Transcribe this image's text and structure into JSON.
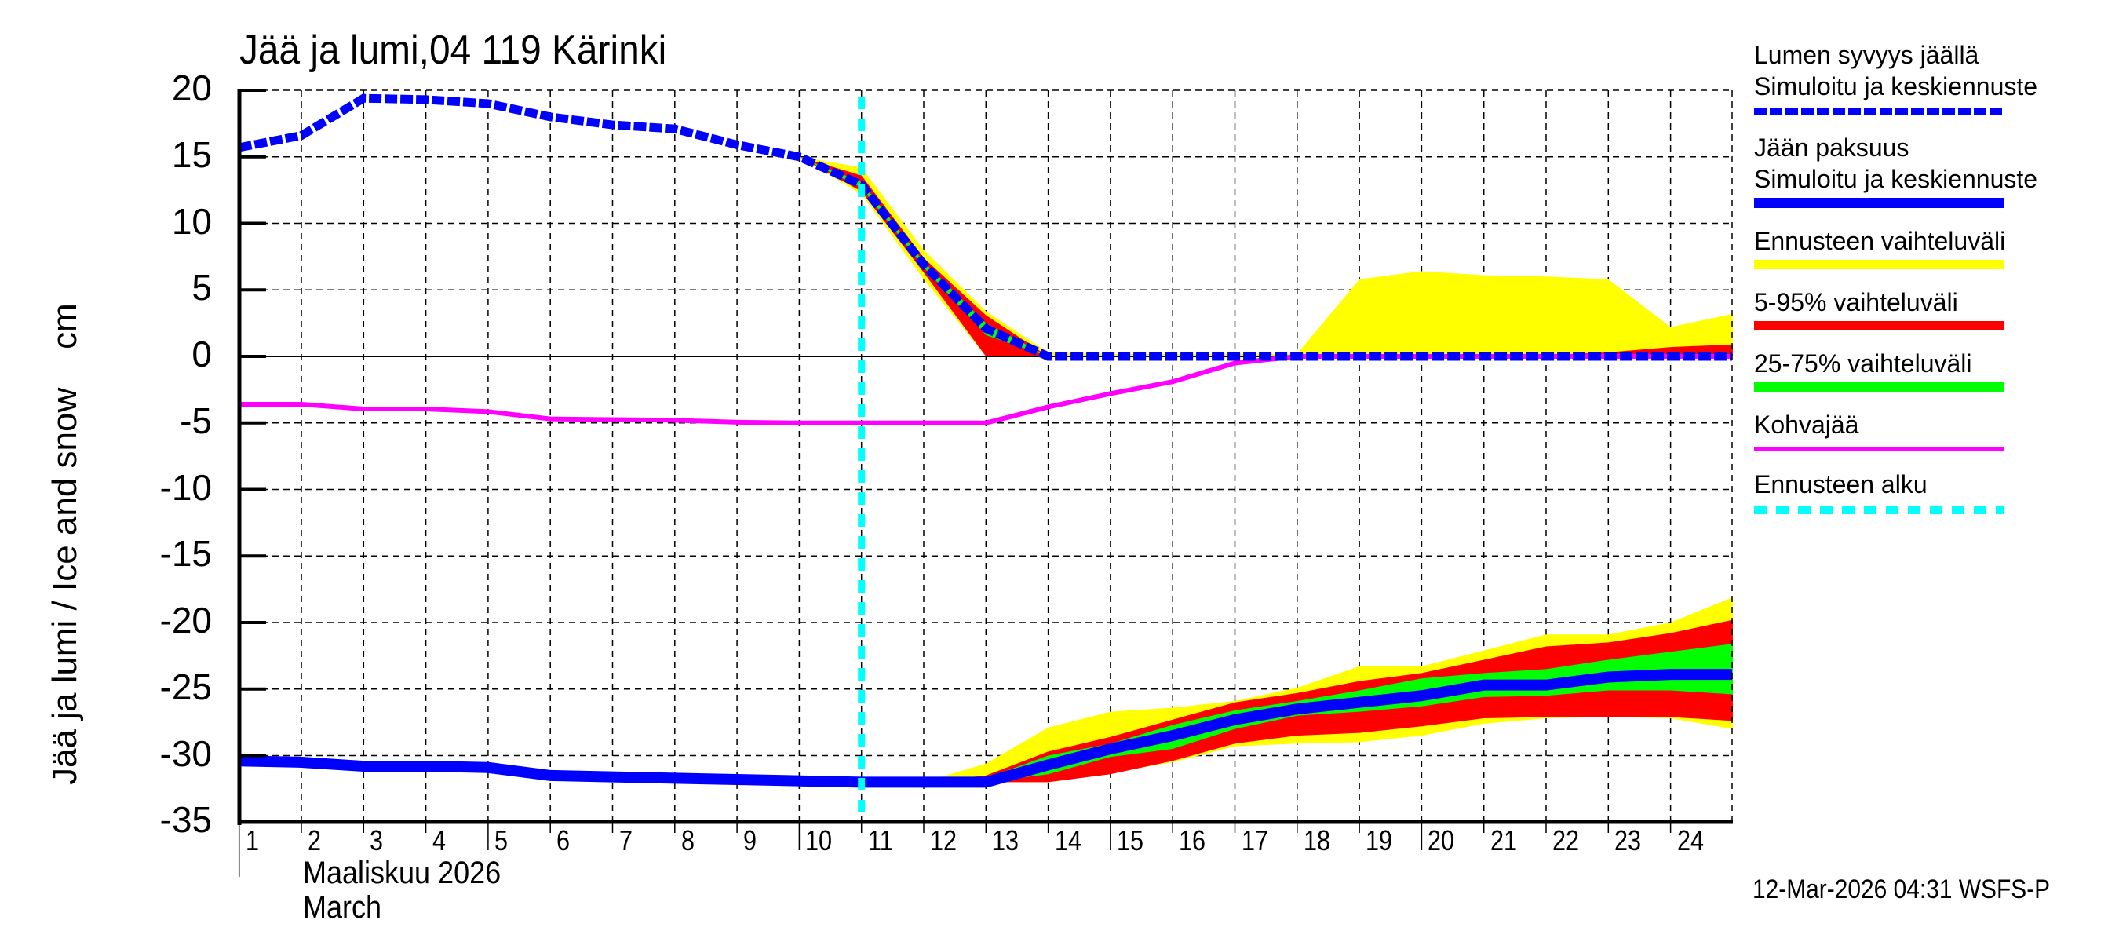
{
  "title": "Jää ja lumi,04 119 Kärinki",
  "y_axis_label": "Jää ja lumi / Ice and snow    cm",
  "x_axis": {
    "month_fi": "Maaliskuu 2026",
    "month_en": "March",
    "tick_labels": [
      "1",
      "2",
      "3",
      "4",
      "5",
      "6",
      "7",
      "8",
      "9",
      "10",
      "11",
      "12",
      "13",
      "14",
      "15",
      "16",
      "17",
      "18",
      "19",
      "20",
      "21",
      "22",
      "23",
      "24"
    ]
  },
  "y_axis": {
    "tick_labels": [
      "20",
      "15",
      "10",
      "5",
      "0",
      "-5",
      "-10",
      "-15",
      "-20",
      "-25",
      "-30",
      "-35"
    ]
  },
  "legend": {
    "items": [
      {
        "label": "Lumen syvyys jäällä\nSimuloitu ja keskiennuste",
        "line1": "Lumen syvyys jäällä",
        "line2": "Simuloitu ja keskiennuste",
        "color": "#0000ff",
        "style": "dashed"
      },
      {
        "label": "Jään paksuus\nSimuloitu ja keskiennuste",
        "line1": "Jään paksuus",
        "line2": "Simuloitu ja keskiennuste",
        "color": "#0000ff",
        "style": "solid"
      },
      {
        "label": "Ennusteen vaihteluväli",
        "line1": "Ennusteen vaihteluväli",
        "color": "#ffff00",
        "style": "solid"
      },
      {
        "label": "5-95% vaihteluväli",
        "line1": "5-95% vaihteluväli",
        "color": "#ff0000",
        "style": "solid"
      },
      {
        "label": "25-75% vaihteluväli",
        "line1": "25-75% vaihteluväli",
        "color": "#00ff00",
        "style": "solid"
      },
      {
        "label": "Kohvajää",
        "line1": "Kohvajää",
        "color": "#ff00ff",
        "style": "thin"
      },
      {
        "label": "Ennusteen alku",
        "line1": "Ennusteen alku",
        "color": "#00ffff",
        "style": "dashed"
      }
    ]
  },
  "timestamp": "12-Mar-2026 04:31 WSFS-P",
  "colors": {
    "snow": "#0000ff",
    "ice": "#0000ff",
    "range_full": "#ffff00",
    "range_5_95": "#ff0000",
    "range_25_75": "#00ff00",
    "slush": "#ff00ff",
    "forecast_start": "#00ffff",
    "grid": "#000000"
  },
  "chart_data": {
    "type": "line",
    "title": "Jää ja lumi,04 119 Kärinki",
    "xlabel": "Maaliskuu 2026 / March",
    "ylabel": "Jää ja lumi / Ice and snow    cm",
    "xlim": [
      1,
      25
    ],
    "ylim": [
      -35,
      20
    ],
    "grid": true,
    "legend_position": "right",
    "forecast_start_day": 11,
    "series": [
      {
        "name": "Lumen syvyys jäällä – Simuloitu ja keskiennuste",
        "style": "dashed",
        "color": "#0000ff",
        "x": [
          1,
          2,
          3,
          4,
          5,
          6,
          7,
          8,
          9,
          10,
          11,
          12,
          13,
          14,
          15,
          16,
          17,
          18,
          19,
          20,
          21,
          22,
          23,
          24,
          25
        ],
        "values": [
          15.7,
          16.6,
          19.4,
          19.3,
          19.0,
          18.0,
          17.4,
          17.1,
          15.9,
          15.0,
          12.9,
          6.9,
          2.1,
          0,
          0,
          0,
          0,
          0,
          0,
          0,
          0,
          0,
          0,
          0,
          0
        ]
      },
      {
        "name": "Jään paksuus – Simuloitu ja keskiennuste",
        "style": "solid-thick",
        "color": "#0000ff",
        "x": [
          1,
          2,
          3,
          4,
          5,
          6,
          7,
          8,
          9,
          10,
          11,
          12,
          13,
          14,
          15,
          16,
          17,
          18,
          19,
          20,
          21,
          22,
          23,
          24,
          25
        ],
        "values": [
          -30.4,
          -30.5,
          -30.8,
          -30.8,
          -30.9,
          -31.5,
          -31.6,
          -31.7,
          -31.8,
          -31.9,
          -32.0,
          -32.0,
          -32.0,
          -30.7,
          -29.5,
          -28.5,
          -27.3,
          -26.5,
          -26.0,
          -25.5,
          -24.7,
          -24.7,
          -24.1,
          -23.9,
          -23.9
        ]
      },
      {
        "name": "Kohvajää",
        "style": "thin",
        "color": "#ff00ff",
        "x": [
          1,
          2,
          3,
          4,
          5,
          6,
          7,
          8,
          9,
          10,
          11,
          12,
          13,
          14,
          15,
          16,
          17,
          18,
          19,
          20,
          21,
          22,
          23,
          24,
          25
        ],
        "values": [
          -3.6,
          -3.6,
          -3.95,
          -3.95,
          -4.15,
          -4.7,
          -4.75,
          -4.8,
          -4.95,
          -5,
          -5,
          -5,
          -5,
          -3.8,
          -2.8,
          -1.9,
          -0.5,
          0,
          0,
          0,
          0,
          0,
          0,
          0,
          0
        ]
      }
    ],
    "bands": [
      {
        "name": "Ennusteen vaihteluväli (snow)",
        "color": "#ffff00",
        "x": [
          10,
          11,
          12,
          13,
          14,
          15,
          16,
          17,
          18,
          19,
          20,
          21,
          22,
          23,
          24,
          25
        ],
        "upper": [
          15.0,
          14.2,
          8.0,
          3.4,
          0.3,
          0.2,
          0.2,
          0.2,
          0.2,
          5.8,
          6.4,
          6.1,
          6.0,
          5.8,
          2.2,
          3.2
        ],
        "lower": [
          15.0,
          12.2,
          5.8,
          0,
          0,
          0,
          0,
          0,
          0,
          0,
          0,
          0,
          0,
          0,
          0,
          0
        ]
      },
      {
        "name": "5-95% vaihteluväli (snow)",
        "color": "#ff0000",
        "x": [
          10,
          11,
          12,
          13,
          14,
          15,
          16,
          17,
          18,
          19,
          20,
          21,
          22,
          23,
          24,
          25
        ],
        "upper": [
          15.0,
          13.6,
          7.4,
          3.1,
          0,
          0,
          0,
          0,
          0,
          0,
          0,
          0,
          0.1,
          0.3,
          0.7,
          0.9
        ],
        "lower": [
          15.0,
          12.4,
          6.3,
          0,
          0,
          0,
          0,
          0,
          0,
          0,
          0,
          0,
          0,
          0,
          0,
          0
        ]
      },
      {
        "name": "25-75% vaihteluväli (snow)",
        "color": "#00ff00",
        "x": [
          10,
          11,
          12,
          13,
          14
        ],
        "upper": [
          15.0,
          13.1,
          7.1,
          2.5,
          0
        ],
        "lower": [
          15.0,
          12.7,
          6.7,
          1.6,
          0
        ]
      },
      {
        "name": "Ennusteen vaihteluväli (ice)",
        "color": "#ffff00",
        "x": [
          11,
          12,
          13,
          14,
          15,
          16,
          17,
          18,
          19,
          20,
          21,
          22,
          23,
          24,
          25
        ],
        "upper": [
          -32.0,
          -32.0,
          -30.6,
          -27.9,
          -26.7,
          -26.4,
          -25.9,
          -24.9,
          -23.3,
          -23.3,
          -22.1,
          -20.9,
          -20.9,
          -20.0,
          -18.1
        ],
        "lower": [
          -32.0,
          -32.0,
          -32.0,
          -32.0,
          -31.3,
          -30.5,
          -29.3,
          -29.1,
          -29.0,
          -28.5,
          -27.6,
          -27.2,
          -27.1,
          -27.2,
          -28.0
        ]
      },
      {
        "name": "5-95% vaihteluväli (ice)",
        "color": "#ff0000",
        "x": [
          12,
          13,
          14,
          15,
          16,
          17,
          18,
          19,
          20,
          21,
          22,
          23,
          24,
          25
        ],
        "upper": [
          -32.0,
          -31.5,
          -29.7,
          -28.6,
          -27.3,
          -26.0,
          -25.3,
          -24.4,
          -23.8,
          -22.8,
          -21.8,
          -21.5,
          -20.8,
          -19.8
        ],
        "lower": [
          -32.0,
          -32.0,
          -32.0,
          -31.4,
          -30.4,
          -29.1,
          -28.5,
          -28.3,
          -27.8,
          -27.2,
          -27.1,
          -27.1,
          -27.1,
          -27.4
        ]
      },
      {
        "name": "25-75% vaihteluväli (ice)",
        "color": "#00ff00",
        "x": [
          12,
          13,
          14,
          15,
          16,
          17,
          18,
          19,
          20,
          21,
          22,
          23,
          24,
          25
        ],
        "upper": [
          -32.0,
          -31.7,
          -30.0,
          -29.1,
          -27.7,
          -26.6,
          -25.9,
          -25.1,
          -24.2,
          -23.8,
          -23.5,
          -22.8,
          -22.2,
          -21.6
        ],
        "lower": [
          -32.0,
          -32.0,
          -31.4,
          -30.1,
          -29.5,
          -28.0,
          -27.0,
          -26.7,
          -26.3,
          -25.6,
          -25.5,
          -25.1,
          -25.1,
          -25.4
        ]
      }
    ]
  }
}
